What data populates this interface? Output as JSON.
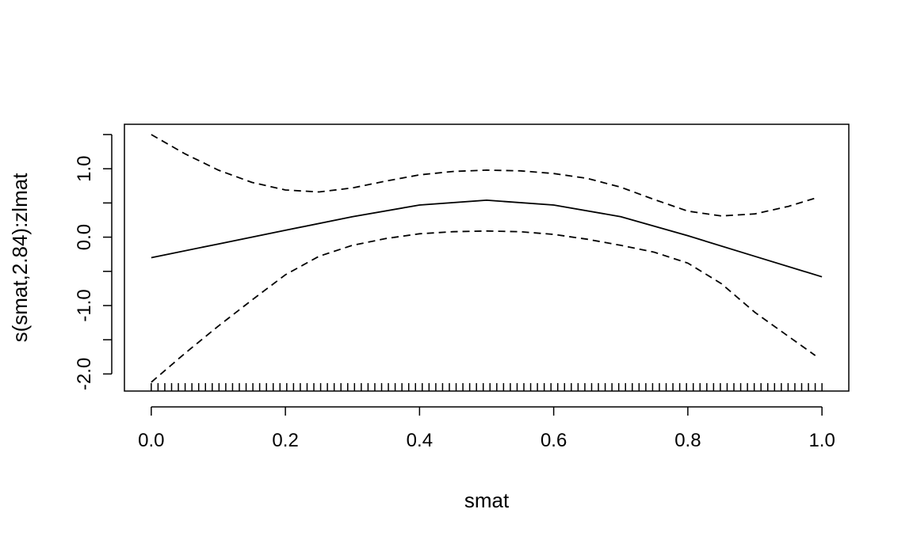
{
  "chart_data": {
    "type": "line",
    "title": "",
    "xlabel": "smat",
    "ylabel": "s(smat,2.84):zlmat",
    "xlim": [
      -0.04,
      1.04
    ],
    "ylim": [
      -2.25,
      1.65
    ],
    "grid": false,
    "x_ticks": [
      0.0,
      0.2,
      0.4,
      0.6,
      0.8,
      1.0
    ],
    "x_tick_labels": [
      "0.0",
      "0.2",
      "0.4",
      "0.6",
      "0.8",
      "1.0"
    ],
    "y_ticks": [
      -2.0,
      -1.5,
      -1.0,
      -0.5,
      0.0,
      0.5,
      1.0,
      1.5
    ],
    "y_tick_labels": [
      "-2.0",
      "",
      "-1.0",
      "",
      "0.0",
      "",
      "1.0",
      ""
    ],
    "series": [
      {
        "style": "solid",
        "x": [
          0.0,
          0.1,
          0.2,
          0.3,
          0.4,
          0.5,
          0.6,
          0.7,
          0.8,
          0.9,
          1.0
        ],
        "values": [
          -0.3,
          -0.1,
          0.1,
          0.3,
          0.47,
          0.54,
          0.47,
          0.3,
          0.02,
          -0.28,
          -0.58
        ]
      },
      {
        "style": "dashed",
        "x": [
          0.0,
          0.05,
          0.1,
          0.15,
          0.2,
          0.25,
          0.3,
          0.35,
          0.4,
          0.45,
          0.5,
          0.55,
          0.6,
          0.65,
          0.7,
          0.75,
          0.8,
          0.85,
          0.9,
          0.95,
          0.99
        ],
        "values": [
          1.5,
          1.22,
          0.98,
          0.8,
          0.69,
          0.66,
          0.72,
          0.82,
          0.91,
          0.96,
          0.98,
          0.97,
          0.93,
          0.86,
          0.73,
          0.55,
          0.38,
          0.31,
          0.34,
          0.45,
          0.57
        ]
      },
      {
        "style": "dashed",
        "x": [
          0.0,
          0.05,
          0.1,
          0.15,
          0.2,
          0.25,
          0.3,
          0.35,
          0.4,
          0.45,
          0.5,
          0.55,
          0.6,
          0.65,
          0.7,
          0.75,
          0.8,
          0.85,
          0.9,
          0.95,
          0.99
        ],
        "values": [
          -2.12,
          -1.7,
          -1.3,
          -0.92,
          -0.55,
          -0.28,
          -0.12,
          -0.02,
          0.05,
          0.08,
          0.09,
          0.08,
          0.04,
          -0.03,
          -0.12,
          -0.22,
          -0.38,
          -0.68,
          -1.1,
          -1.45,
          -1.73
        ]
      }
    ],
    "rug": {
      "count": 100,
      "from": 0.0,
      "to": 1.0
    }
  }
}
